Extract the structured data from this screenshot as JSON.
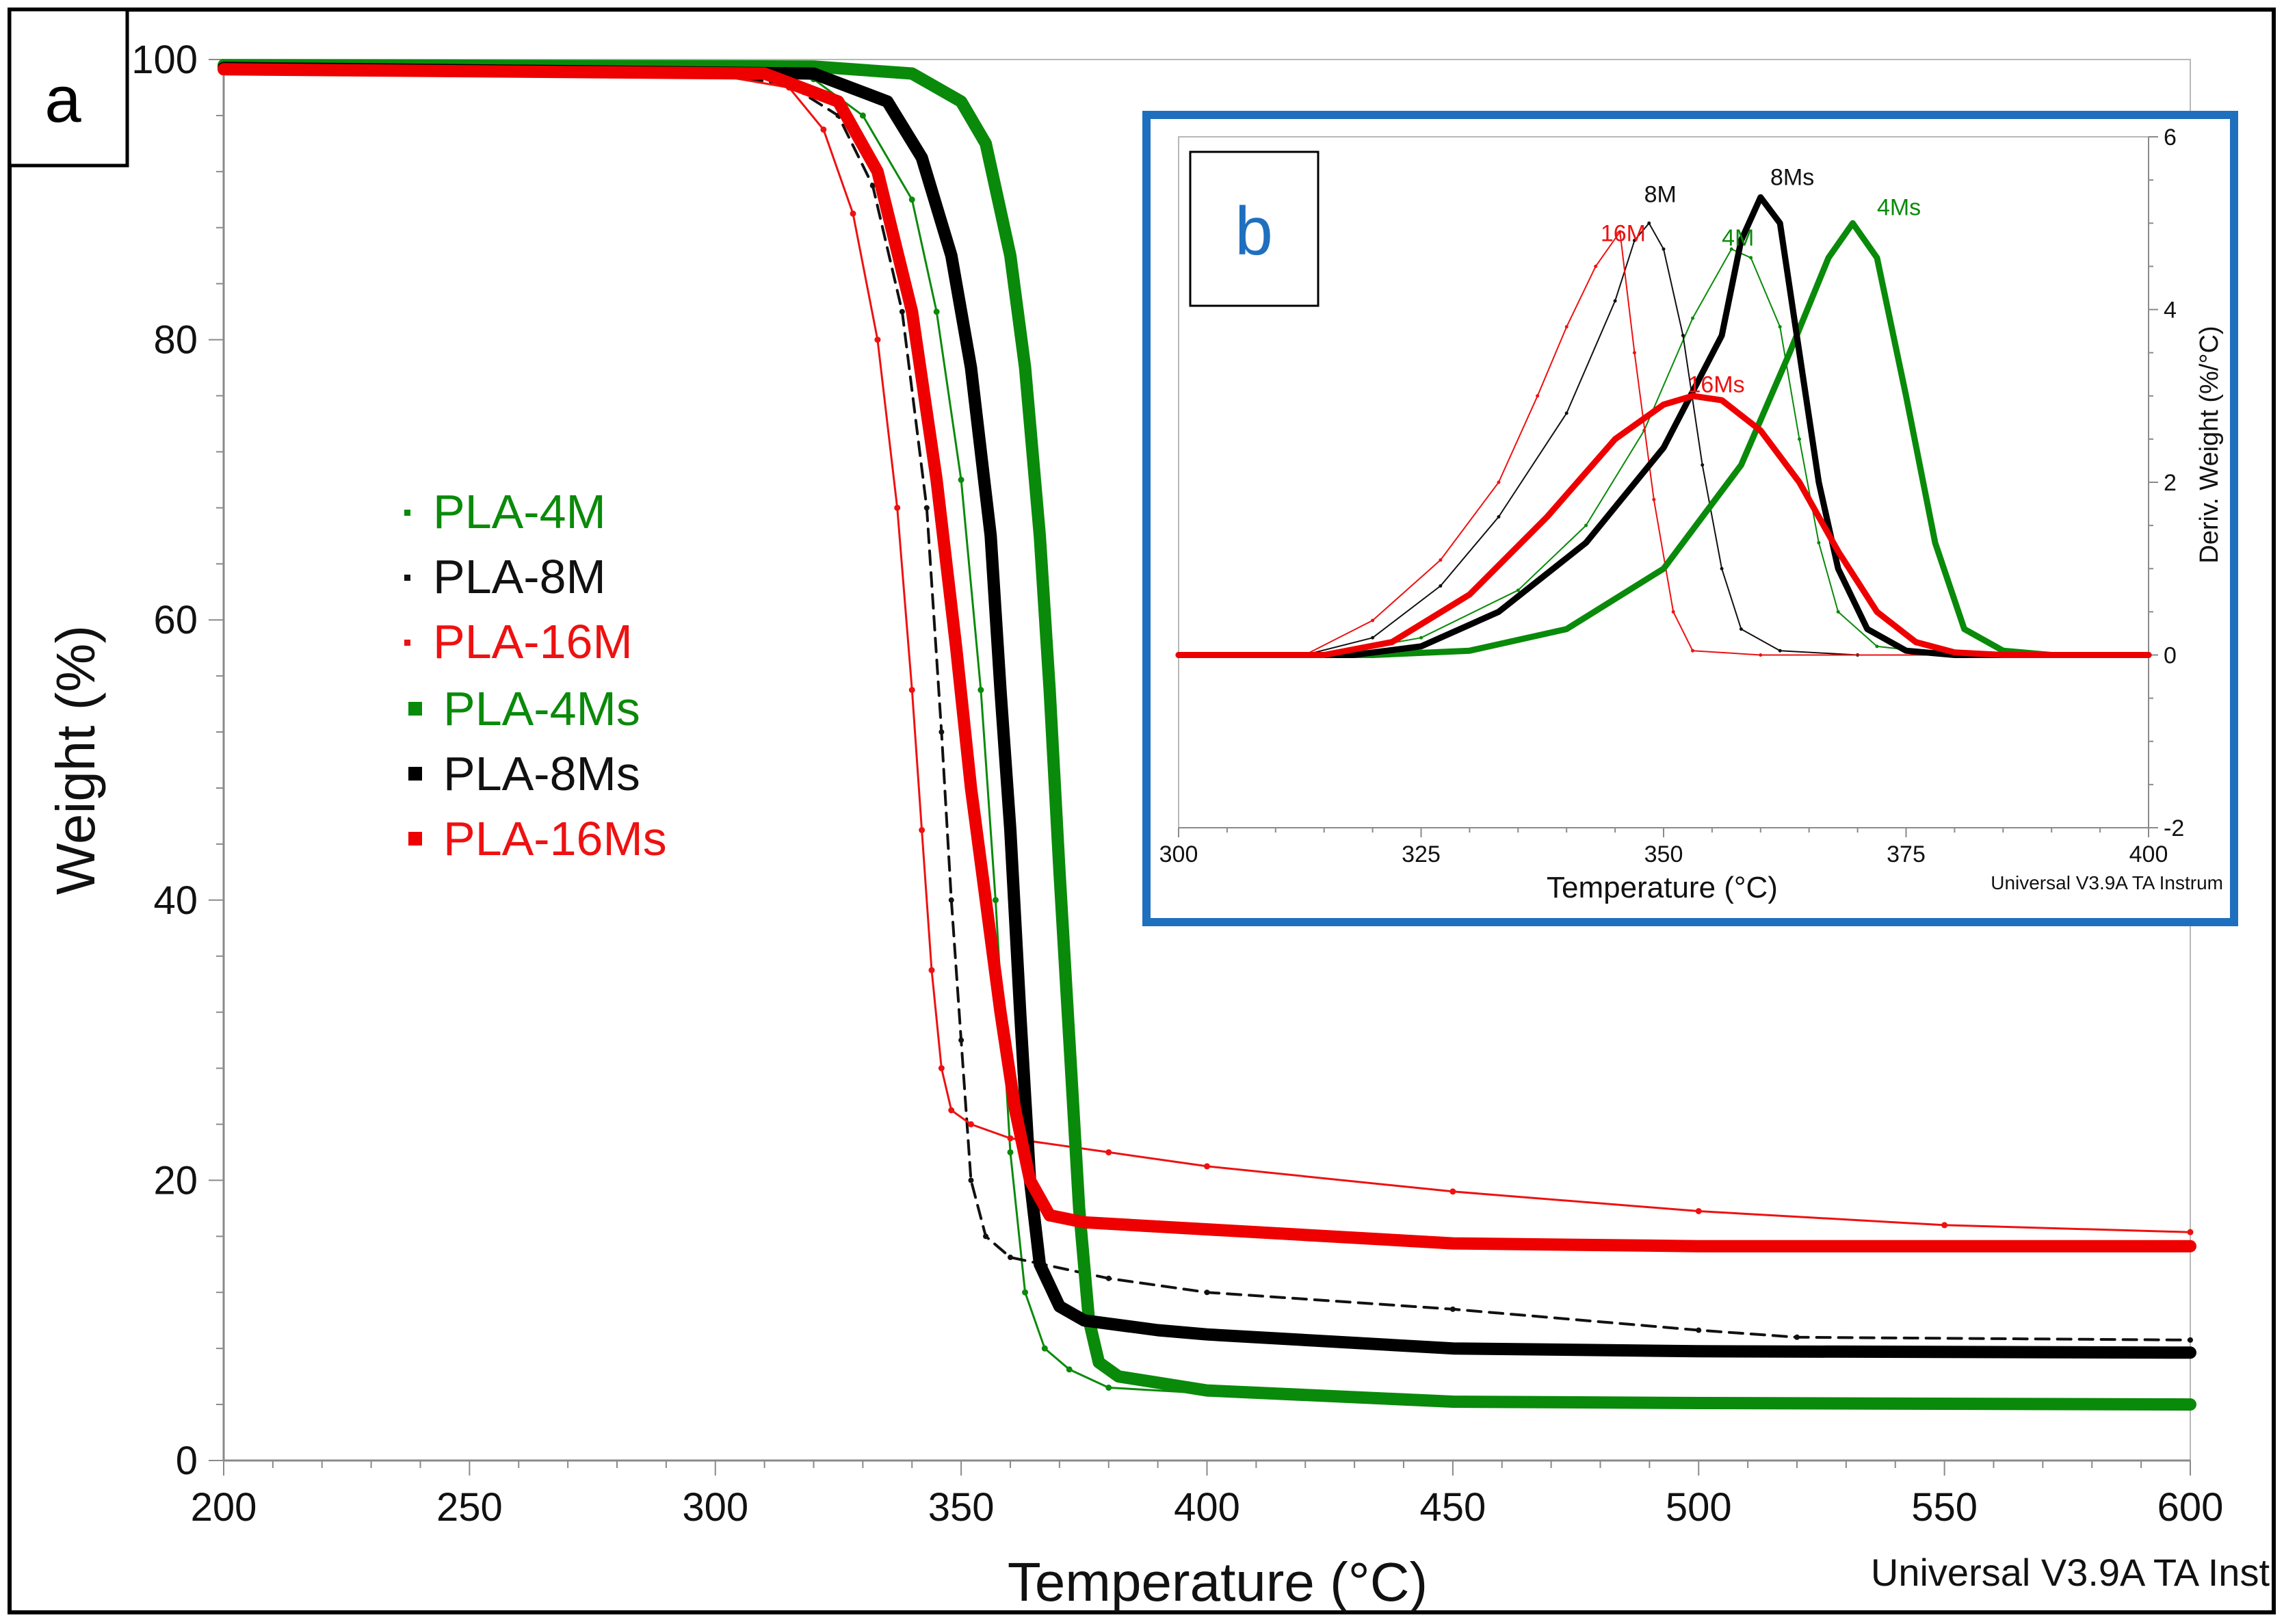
{
  "chart_data": [
    {
      "panel_label": "a",
      "type": "line",
      "xlabel": "Temperature (°C)",
      "ylabel": "Weight (%)",
      "xlim": [
        200,
        600
      ],
      "ylim": [
        0,
        100
      ],
      "x_ticks": [
        200,
        250,
        300,
        350,
        400,
        450,
        500,
        550,
        600
      ],
      "y_ticks": [
        0,
        20,
        40,
        60,
        80,
        100
      ],
      "footer": "Universal V3.9A TA Inst",
      "series": [
        {
          "name": "PLA-4M",
          "legend": "PLA-4M",
          "color": "#0a8a0a",
          "style": "thin",
          "points": [
            [
              200,
              99.5
            ],
            [
              300,
              99.4
            ],
            [
              320,
              98.6
            ],
            [
              330,
              96
            ],
            [
              340,
              90
            ],
            [
              345,
              82
            ],
            [
              350,
              70
            ],
            [
              354,
              55
            ],
            [
              357,
              40
            ],
            [
              360,
              22
            ],
            [
              363,
              12
            ],
            [
              367,
              8
            ],
            [
              372,
              6.5
            ],
            [
              380,
              5.2
            ],
            [
              400,
              4.8
            ],
            [
              450,
              4.3
            ],
            [
              500,
              4.2
            ],
            [
              600,
              4.1
            ]
          ]
        },
        {
          "name": "PLA-8M",
          "legend": "PLA-8M",
          "color": "#111111",
          "style": "dashed",
          "points": [
            [
              200,
              99.2
            ],
            [
              300,
              99.0
            ],
            [
              315,
              98.2
            ],
            [
              325,
              96
            ],
            [
              332,
              91
            ],
            [
              338,
              82
            ],
            [
              343,
              68
            ],
            [
              346,
              52
            ],
            [
              348,
              40
            ],
            [
              350,
              30
            ],
            [
              352,
              20
            ],
            [
              355,
              16
            ],
            [
              360,
              14.5
            ],
            [
              380,
              13
            ],
            [
              400,
              12
            ],
            [
              450,
              10.8
            ],
            [
              500,
              9.3
            ],
            [
              520,
              8.8
            ],
            [
              600,
              8.6
            ]
          ]
        },
        {
          "name": "PLA-16M",
          "legend": "PLA-16M",
          "color": "#ee1111",
          "style": "thin",
          "points": [
            [
              200,
              99.2
            ],
            [
              300,
              98.9
            ],
            [
              315,
              98
            ],
            [
              322,
              95
            ],
            [
              328,
              89
            ],
            [
              333,
              80
            ],
            [
              337,
              68
            ],
            [
              340,
              55
            ],
            [
              342,
              45
            ],
            [
              344,
              35
            ],
            [
              346,
              28
            ],
            [
              348,
              25
            ],
            [
              352,
              24
            ],
            [
              360,
              23
            ],
            [
              380,
              22
            ],
            [
              400,
              21
            ],
            [
              450,
              19.2
            ],
            [
              500,
              17.8
            ],
            [
              550,
              16.8
            ],
            [
              600,
              16.3
            ]
          ]
        },
        {
          "name": "PLA-4Ms",
          "legend": "PLA-4Ms",
          "color": "#0a8a0a",
          "style": "thick",
          "points": [
            [
              200,
              99.6
            ],
            [
              320,
              99.5
            ],
            [
              340,
              99
            ],
            [
              350,
              97
            ],
            [
              355,
              94
            ],
            [
              360,
              86
            ],
            [
              363,
              78
            ],
            [
              366,
              66
            ],
            [
              368,
              55
            ],
            [
              370,
              42
            ],
            [
              372,
              30
            ],
            [
              374,
              18
            ],
            [
              376,
              10
            ],
            [
              378,
              7
            ],
            [
              382,
              6
            ],
            [
              400,
              5
            ],
            [
              450,
              4.2
            ],
            [
              500,
              4.1
            ],
            [
              600,
              4.0
            ]
          ]
        },
        {
          "name": "PLA-8Ms",
          "legend": "PLA-8Ms",
          "color": "#000000",
          "style": "thick",
          "points": [
            [
              200,
              99.4
            ],
            [
              320,
              99
            ],
            [
              335,
              97
            ],
            [
              342,
              93
            ],
            [
              348,
              86
            ],
            [
              352,
              78
            ],
            [
              356,
              66
            ],
            [
              358,
              55
            ],
            [
              360,
              45
            ],
            [
              362,
              32
            ],
            [
              364,
              20
            ],
            [
              366,
              14
            ],
            [
              370,
              11
            ],
            [
              375,
              10
            ],
            [
              390,
              9.3
            ],
            [
              400,
              9
            ],
            [
              450,
              8
            ],
            [
              500,
              7.8
            ],
            [
              600,
              7.7
            ]
          ]
        },
        {
          "name": "PLA-16Ms",
          "legend": "PLA-16Ms",
          "color": "#ee0000",
          "style": "thick",
          "points": [
            [
              200,
              99.3
            ],
            [
              310,
              99
            ],
            [
              325,
              97
            ],
            [
              333,
              92
            ],
            [
              340,
              82
            ],
            [
              345,
              70
            ],
            [
              349,
              58
            ],
            [
              352,
              48
            ],
            [
              355,
              40
            ],
            [
              358,
              32
            ],
            [
              361,
              25
            ],
            [
              364,
              20
            ],
            [
              368,
              17.5
            ],
            [
              375,
              17
            ],
            [
              400,
              16.5
            ],
            [
              450,
              15.5
            ],
            [
              500,
              15.3
            ],
            [
              600,
              15.3
            ]
          ]
        }
      ]
    },
    {
      "panel_label": "b",
      "type": "line",
      "xlabel": "Temperature (°C)",
      "ylabel": "Deriv. Weight (%/°C)",
      "y_axis_side": "right",
      "xlim": [
        300,
        400
      ],
      "ylim": [
        -2,
        6
      ],
      "x_ticks": [
        300,
        325,
        350,
        375,
        400
      ],
      "y_ticks": [
        -2,
        0,
        2,
        4,
        6
      ],
      "footer": "Universal V3.9A TA Instrum",
      "series": [
        {
          "name": "4M",
          "color": "#0a8a0a",
          "style": "thin",
          "points": [
            [
              300,
              0
            ],
            [
              315,
              0
            ],
            [
              325,
              0.2
            ],
            [
              335,
              0.75
            ],
            [
              342,
              1.5
            ],
            [
              348,
              2.6
            ],
            [
              353,
              3.9
            ],
            [
              357,
              4.7
            ],
            [
              359,
              4.6
            ],
            [
              362,
              3.8
            ],
            [
              364,
              2.5
            ],
            [
              366,
              1.3
            ],
            [
              368,
              0.5
            ],
            [
              372,
              0.1
            ],
            [
              380,
              0
            ],
            [
              400,
              0
            ]
          ]
        },
        {
          "name": "8M",
          "color": "#111111",
          "style": "thin",
          "points": [
            [
              300,
              0
            ],
            [
              313,
              0
            ],
            [
              320,
              0.2
            ],
            [
              327,
              0.8
            ],
            [
              333,
              1.6
            ],
            [
              340,
              2.8
            ],
            [
              345,
              4.1
            ],
            [
              347,
              4.8
            ],
            [
              348.5,
              5.0
            ],
            [
              350,
              4.7
            ],
            [
              352,
              3.7
            ],
            [
              354,
              2.2
            ],
            [
              356,
              1.0
            ],
            [
              358,
              0.3
            ],
            [
              362,
              0.05
            ],
            [
              370,
              0
            ],
            [
              400,
              0
            ]
          ]
        },
        {
          "name": "16M",
          "color": "#ee1111",
          "style": "thin",
          "points": [
            [
              300,
              0
            ],
            [
              313,
              0
            ],
            [
              320,
              0.4
            ],
            [
              327,
              1.1
            ],
            [
              333,
              2.0
            ],
            [
              337,
              3.0
            ],
            [
              340,
              3.8
            ],
            [
              343,
              4.5
            ],
            [
              345.5,
              4.9
            ],
            [
              347,
              3.5
            ],
            [
              349,
              1.8
            ],
            [
              351,
              0.5
            ],
            [
              353,
              0.05
            ],
            [
              360,
              0
            ],
            [
              400,
              0
            ]
          ]
        },
        {
          "name": "4Ms",
          "color": "#0a8a0a",
          "style": "thick",
          "points": [
            [
              300,
              0
            ],
            [
              320,
              0
            ],
            [
              330,
              0.05
            ],
            [
              340,
              0.3
            ],
            [
              350,
              1.0
            ],
            [
              358,
              2.2
            ],
            [
              363,
              3.5
            ],
            [
              367,
              4.6
            ],
            [
              369.5,
              5.0
            ],
            [
              372,
              4.6
            ],
            [
              375,
              3.0
            ],
            [
              378,
              1.3
            ],
            [
              381,
              0.3
            ],
            [
              385,
              0.05
            ],
            [
              390,
              0
            ],
            [
              400,
              0
            ]
          ]
        },
        {
          "name": "8Ms",
          "color": "#000000",
          "style": "thick",
          "points": [
            [
              300,
              0
            ],
            [
              318,
              0
            ],
            [
              325,
              0.1
            ],
            [
              333,
              0.5
            ],
            [
              342,
              1.3
            ],
            [
              350,
              2.4
            ],
            [
              356,
              3.7
            ],
            [
              358,
              4.8
            ],
            [
              360,
              5.3
            ],
            [
              362,
              5.0
            ],
            [
              364,
              3.5
            ],
            [
              366,
              2.0
            ],
            [
              368,
              1.0
            ],
            [
              371,
              0.3
            ],
            [
              375,
              0.05
            ],
            [
              380,
              0
            ],
            [
              400,
              0
            ]
          ]
        },
        {
          "name": "16Ms",
          "color": "#ee0000",
          "style": "thick",
          "points": [
            [
              300,
              0
            ],
            [
              315,
              0
            ],
            [
              322,
              0.15
            ],
            [
              330,
              0.7
            ],
            [
              338,
              1.6
            ],
            [
              345,
              2.5
            ],
            [
              350,
              2.9
            ],
            [
              353,
              3.0
            ],
            [
              356,
              2.95
            ],
            [
              360,
              2.6
            ],
            [
              364,
              2.0
            ],
            [
              368,
              1.2
            ],
            [
              372,
              0.5
            ],
            [
              376,
              0.15
            ],
            [
              380,
              0.03
            ],
            [
              385,
              0
            ],
            [
              400,
              0
            ]
          ]
        }
      ],
      "peak_labels": [
        {
          "text": "16M",
          "x": 343.5,
          "y": 4.65,
          "color": "#ee1111"
        },
        {
          "text": "8M",
          "x": 348,
          "y": 5.1,
          "color": "#111111"
        },
        {
          "text": "4M",
          "x": 356,
          "y": 4.6,
          "color": "#0a8a0a"
        },
        {
          "text": "8Ms",
          "x": 361,
          "y": 5.3,
          "color": "#111111"
        },
        {
          "text": "4Ms",
          "x": 372,
          "y": 4.95,
          "color": "#0a8a0a"
        },
        {
          "text": "16Ms",
          "x": 352.5,
          "y": 2.9,
          "color": "#ee1111"
        }
      ]
    }
  ]
}
